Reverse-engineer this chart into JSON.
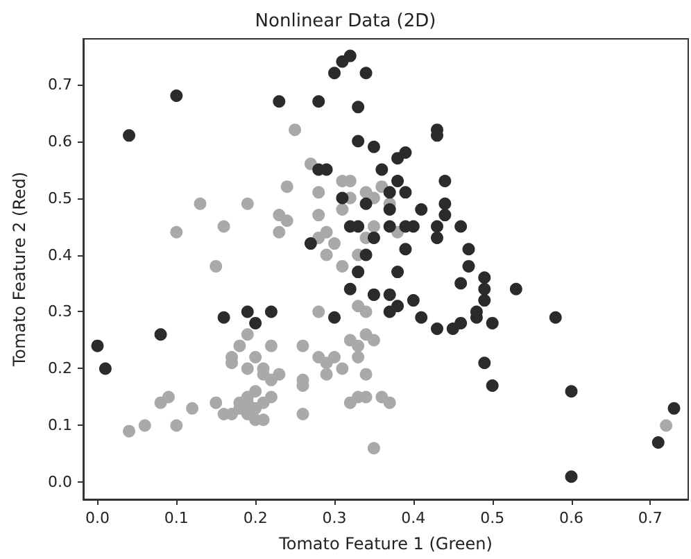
{
  "chart_data": {
    "type": "scatter",
    "title": "Nonlinear Data (2D)",
    "xlabel": "Tomato Feature 1 (Green)",
    "ylabel": "Tomato Feature 2 (Red)",
    "marker": "circle",
    "grid": false,
    "xlim": [
      -0.018,
      0.748
    ],
    "ylim": [
      -0.03,
      0.78
    ],
    "xticks": [
      {
        "value": 0,
        "label": "0.0"
      },
      {
        "value": 0.1,
        "label": "0.1"
      },
      {
        "value": 0.2,
        "label": "0.2"
      },
      {
        "value": 0.3,
        "label": "0.3"
      },
      {
        "value": 0.4,
        "label": "0.4"
      },
      {
        "value": 0.5,
        "label": "0.5"
      },
      {
        "value": 0.6,
        "label": "0.6"
      },
      {
        "value": 0.7,
        "label": "0.7"
      }
    ],
    "yticks": [
      {
        "value": 0,
        "label": "0.0"
      },
      {
        "value": 0.1,
        "label": "0.1"
      },
      {
        "value": 0.2,
        "label": "0.2"
      },
      {
        "value": 0.3,
        "label": "0.3"
      },
      {
        "value": 0.4,
        "label": "0.4"
      },
      {
        "value": 0.5,
        "label": "0.5"
      },
      {
        "value": 0.6,
        "label": "0.6"
      },
      {
        "value": 0.7,
        "label": "0.7"
      }
    ],
    "series": [
      {
        "color": "#a9a9a9",
        "x": [
          0.04,
          0.06,
          0.08,
          0.09,
          0.1,
          0.12,
          0.1,
          0.13,
          0.15,
          0.16,
          0.15,
          0.16,
          0.17,
          0.18,
          0.18,
          0.19,
          0.19,
          0.19,
          0.2,
          0.2,
          0.2,
          0.21,
          0.21,
          0.19,
          0.18,
          0.17,
          0.17,
          0.19,
          0.19,
          0.2,
          0.21,
          0.21,
          0.22,
          0.22,
          0.22,
          0.23,
          0.23,
          0.23,
          0.24,
          0.24,
          0.25,
          0.26,
          0.26,
          0.26,
          0.26,
          0.27,
          0.28,
          0.28,
          0.28,
          0.28,
          0.28,
          0.29,
          0.29,
          0.29,
          0.29,
          0.3,
          0.3,
          0.31,
          0.31,
          0.31,
          0.31,
          0.32,
          0.32,
          0.32,
          0.33,
          0.33,
          0.33,
          0.33,
          0.33,
          0.34,
          0.34,
          0.34,
          0.34,
          0.33,
          0.32,
          0.34,
          0.35,
          0.35,
          0.35,
          0.36,
          0.37,
          0.37,
          0.36,
          0.38,
          0.35,
          0.72,
          0.34,
          0.35
        ],
        "values": [
          0.09,
          0.1,
          0.14,
          0.15,
          0.1,
          0.13,
          0.44,
          0.49,
          0.38,
          0.45,
          0.14,
          0.12,
          0.12,
          0.13,
          0.14,
          0.12,
          0.14,
          0.15,
          0.13,
          0.11,
          0.16,
          0.11,
          0.14,
          0.49,
          0.24,
          0.22,
          0.21,
          0.2,
          0.26,
          0.22,
          0.19,
          0.2,
          0.24,
          0.18,
          0.15,
          0.19,
          0.44,
          0.47,
          0.46,
          0.52,
          0.62,
          0.12,
          0.24,
          0.17,
          0.18,
          0.56,
          0.22,
          0.3,
          0.51,
          0.47,
          0.43,
          0.21,
          0.19,
          0.4,
          0.44,
          0.42,
          0.22,
          0.2,
          0.38,
          0.48,
          0.53,
          0.5,
          0.53,
          0.25,
          0.24,
          0.22,
          0.31,
          0.4,
          0.37,
          0.51,
          0.43,
          0.19,
          0.15,
          0.15,
          0.14,
          0.26,
          0.25,
          0.33,
          0.06,
          0.15,
          0.14,
          0.49,
          0.52,
          0.44,
          0.5,
          0.1,
          0.3,
          0.45
        ]
      },
      {
        "color": "#2b2b2b",
        "x": [
          0.0,
          0.01,
          0.04,
          0.08,
          0.1,
          0.16,
          0.19,
          0.2,
          0.22,
          0.23,
          0.28,
          0.27,
          0.28,
          0.29,
          0.3,
          0.31,
          0.3,
          0.31,
          0.32,
          0.32,
          0.33,
          0.33,
          0.33,
          0.34,
          0.34,
          0.33,
          0.32,
          0.35,
          0.35,
          0.36,
          0.37,
          0.37,
          0.37,
          0.38,
          0.38,
          0.39,
          0.39,
          0.39,
          0.38,
          0.37,
          0.37,
          0.38,
          0.39,
          0.4,
          0.41,
          0.43,
          0.43,
          0.44,
          0.43,
          0.44,
          0.44,
          0.43,
          0.46,
          0.47,
          0.47,
          0.46,
          0.43,
          0.45,
          0.46,
          0.48,
          0.49,
          0.49,
          0.49,
          0.48,
          0.49,
          0.5,
          0.5,
          0.53,
          0.58,
          0.6,
          0.6,
          0.71,
          0.73,
          0.34,
          0.35,
          0.4,
          0.41
        ],
        "values": [
          0.24,
          0.2,
          0.61,
          0.26,
          0.68,
          0.29,
          0.3,
          0.28,
          0.3,
          0.67,
          0.67,
          0.42,
          0.55,
          0.55,
          0.29,
          0.5,
          0.72,
          0.74,
          0.75,
          0.45,
          0.45,
          0.66,
          0.6,
          0.72,
          0.49,
          0.37,
          0.34,
          0.33,
          0.59,
          0.55,
          0.45,
          0.48,
          0.51,
          0.53,
          0.57,
          0.58,
          0.51,
          0.45,
          0.37,
          0.33,
          0.3,
          0.31,
          0.41,
          0.32,
          0.29,
          0.62,
          0.61,
          0.53,
          0.45,
          0.49,
          0.47,
          0.43,
          0.45,
          0.41,
          0.38,
          0.35,
          0.27,
          0.27,
          0.28,
          0.29,
          0.34,
          0.36,
          0.32,
          0.3,
          0.21,
          0.17,
          0.28,
          0.34,
          0.29,
          0.16,
          0.01,
          0.07,
          0.13,
          0.4,
          0.43,
          0.45,
          0.48
        ]
      }
    ]
  }
}
